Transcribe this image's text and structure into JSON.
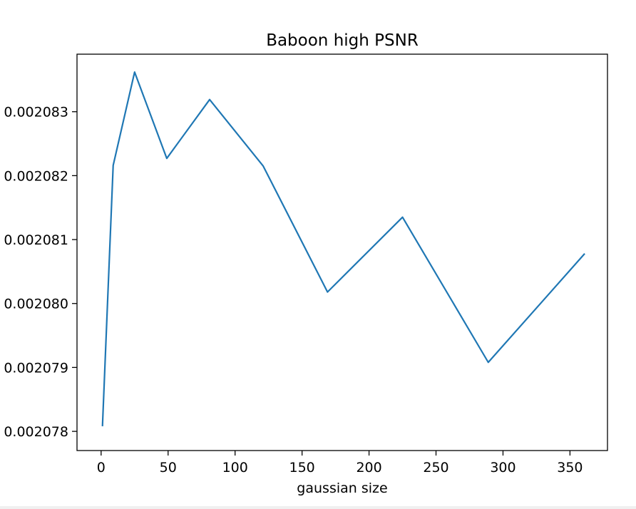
{
  "chart_data": {
    "type": "line",
    "title": "Baboon high PSNR",
    "xlabel": "gaussian size",
    "ylabel": "",
    "xlim": [
      -18,
      378
    ],
    "ylim": [
      0.0020777,
      0.0020839
    ],
    "xticks": [
      0,
      50,
      100,
      150,
      200,
      250,
      300,
      350
    ],
    "xtick_labels": [
      "0",
      "50",
      "100",
      "150",
      "200",
      "250",
      "300",
      "350"
    ],
    "yticks": [
      0.002078,
      0.002079,
      0.00208,
      0.002081,
      0.002082,
      0.002083
    ],
    "ytick_labels": [
      "0.002078",
      "0.002079",
      "0.002080",
      "0.002081",
      "0.002082",
      "0.002083"
    ],
    "grid": false,
    "series": [
      {
        "color": "#1f77b4",
        "x": [
          1,
          9,
          25,
          49,
          81,
          121,
          169,
          225,
          289,
          361
        ],
        "y": [
          0.00207808,
          0.00208216,
          0.00208362,
          0.00208227,
          0.00208319,
          0.00208215,
          0.00208018,
          0.00208135,
          0.00207908,
          0.00208078
        ]
      }
    ]
  }
}
